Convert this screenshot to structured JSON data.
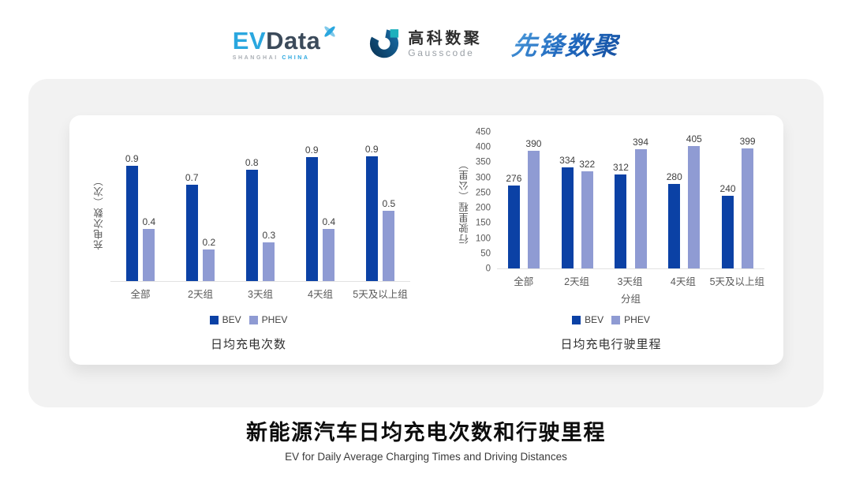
{
  "header": {
    "evdata": {
      "ev": "EV",
      "data": "Data",
      "sub1": "SHANGHAI",
      "sub2": "CHINA"
    },
    "gausscode": {
      "name_cn": "高科数聚",
      "name_en": "Gausscode"
    },
    "pioneer": {
      "name": "先锋数聚"
    }
  },
  "colors": {
    "bev": "#0b41a5",
    "phev": "#8f9bd3",
    "panel": "#f2f2f2"
  },
  "chart_data": [
    {
      "type": "bar",
      "title": "日均充电次数",
      "ylabel": "充电次数（次）",
      "xlabel": "",
      "categories": [
        "全部",
        "2天组",
        "3天组",
        "4天组",
        "5天及以上组"
      ],
      "series": [
        {
          "name": "BEV",
          "color": "#0b41a5",
          "values": [
            0.9,
            0.7,
            0.8,
            0.9,
            0.9
          ],
          "values_precise": [
            0.84,
            0.7,
            0.81,
            0.9,
            0.91
          ]
        },
        {
          "name": "PHEV",
          "color": "#8f9bd3",
          "values": [
            0.4,
            0.2,
            0.3,
            0.4,
            0.5
          ],
          "values_precise": [
            0.38,
            0.23,
            0.28,
            0.38,
            0.51
          ]
        }
      ],
      "ylim": [
        0,
        1.0
      ],
      "yticks": [],
      "grid": false,
      "legend_position": "bottom"
    },
    {
      "type": "bar",
      "title": "日均充电行驶里程",
      "ylabel": "行驶里程（公里）",
      "xlabel": "分组",
      "categories": [
        "全部",
        "2天组",
        "3天组",
        "4天组",
        "5天及以上组"
      ],
      "series": [
        {
          "name": "BEV",
          "color": "#0b41a5",
          "values": [
            276,
            334,
            312,
            280,
            240
          ]
        },
        {
          "name": "PHEV",
          "color": "#8f9bd3",
          "values": [
            390,
            322,
            394,
            405,
            399
          ]
        }
      ],
      "ylim": [
        0,
        450
      ],
      "yticks": [
        450,
        400,
        350,
        300,
        250,
        200,
        150,
        100,
        50,
        0
      ],
      "grid": false,
      "legend_position": "bottom"
    }
  ],
  "footer": {
    "title": "新能源汽车日均充电次数和行驶里程",
    "subtitle": "EV for Daily Average Charging Times and Driving Distances"
  }
}
